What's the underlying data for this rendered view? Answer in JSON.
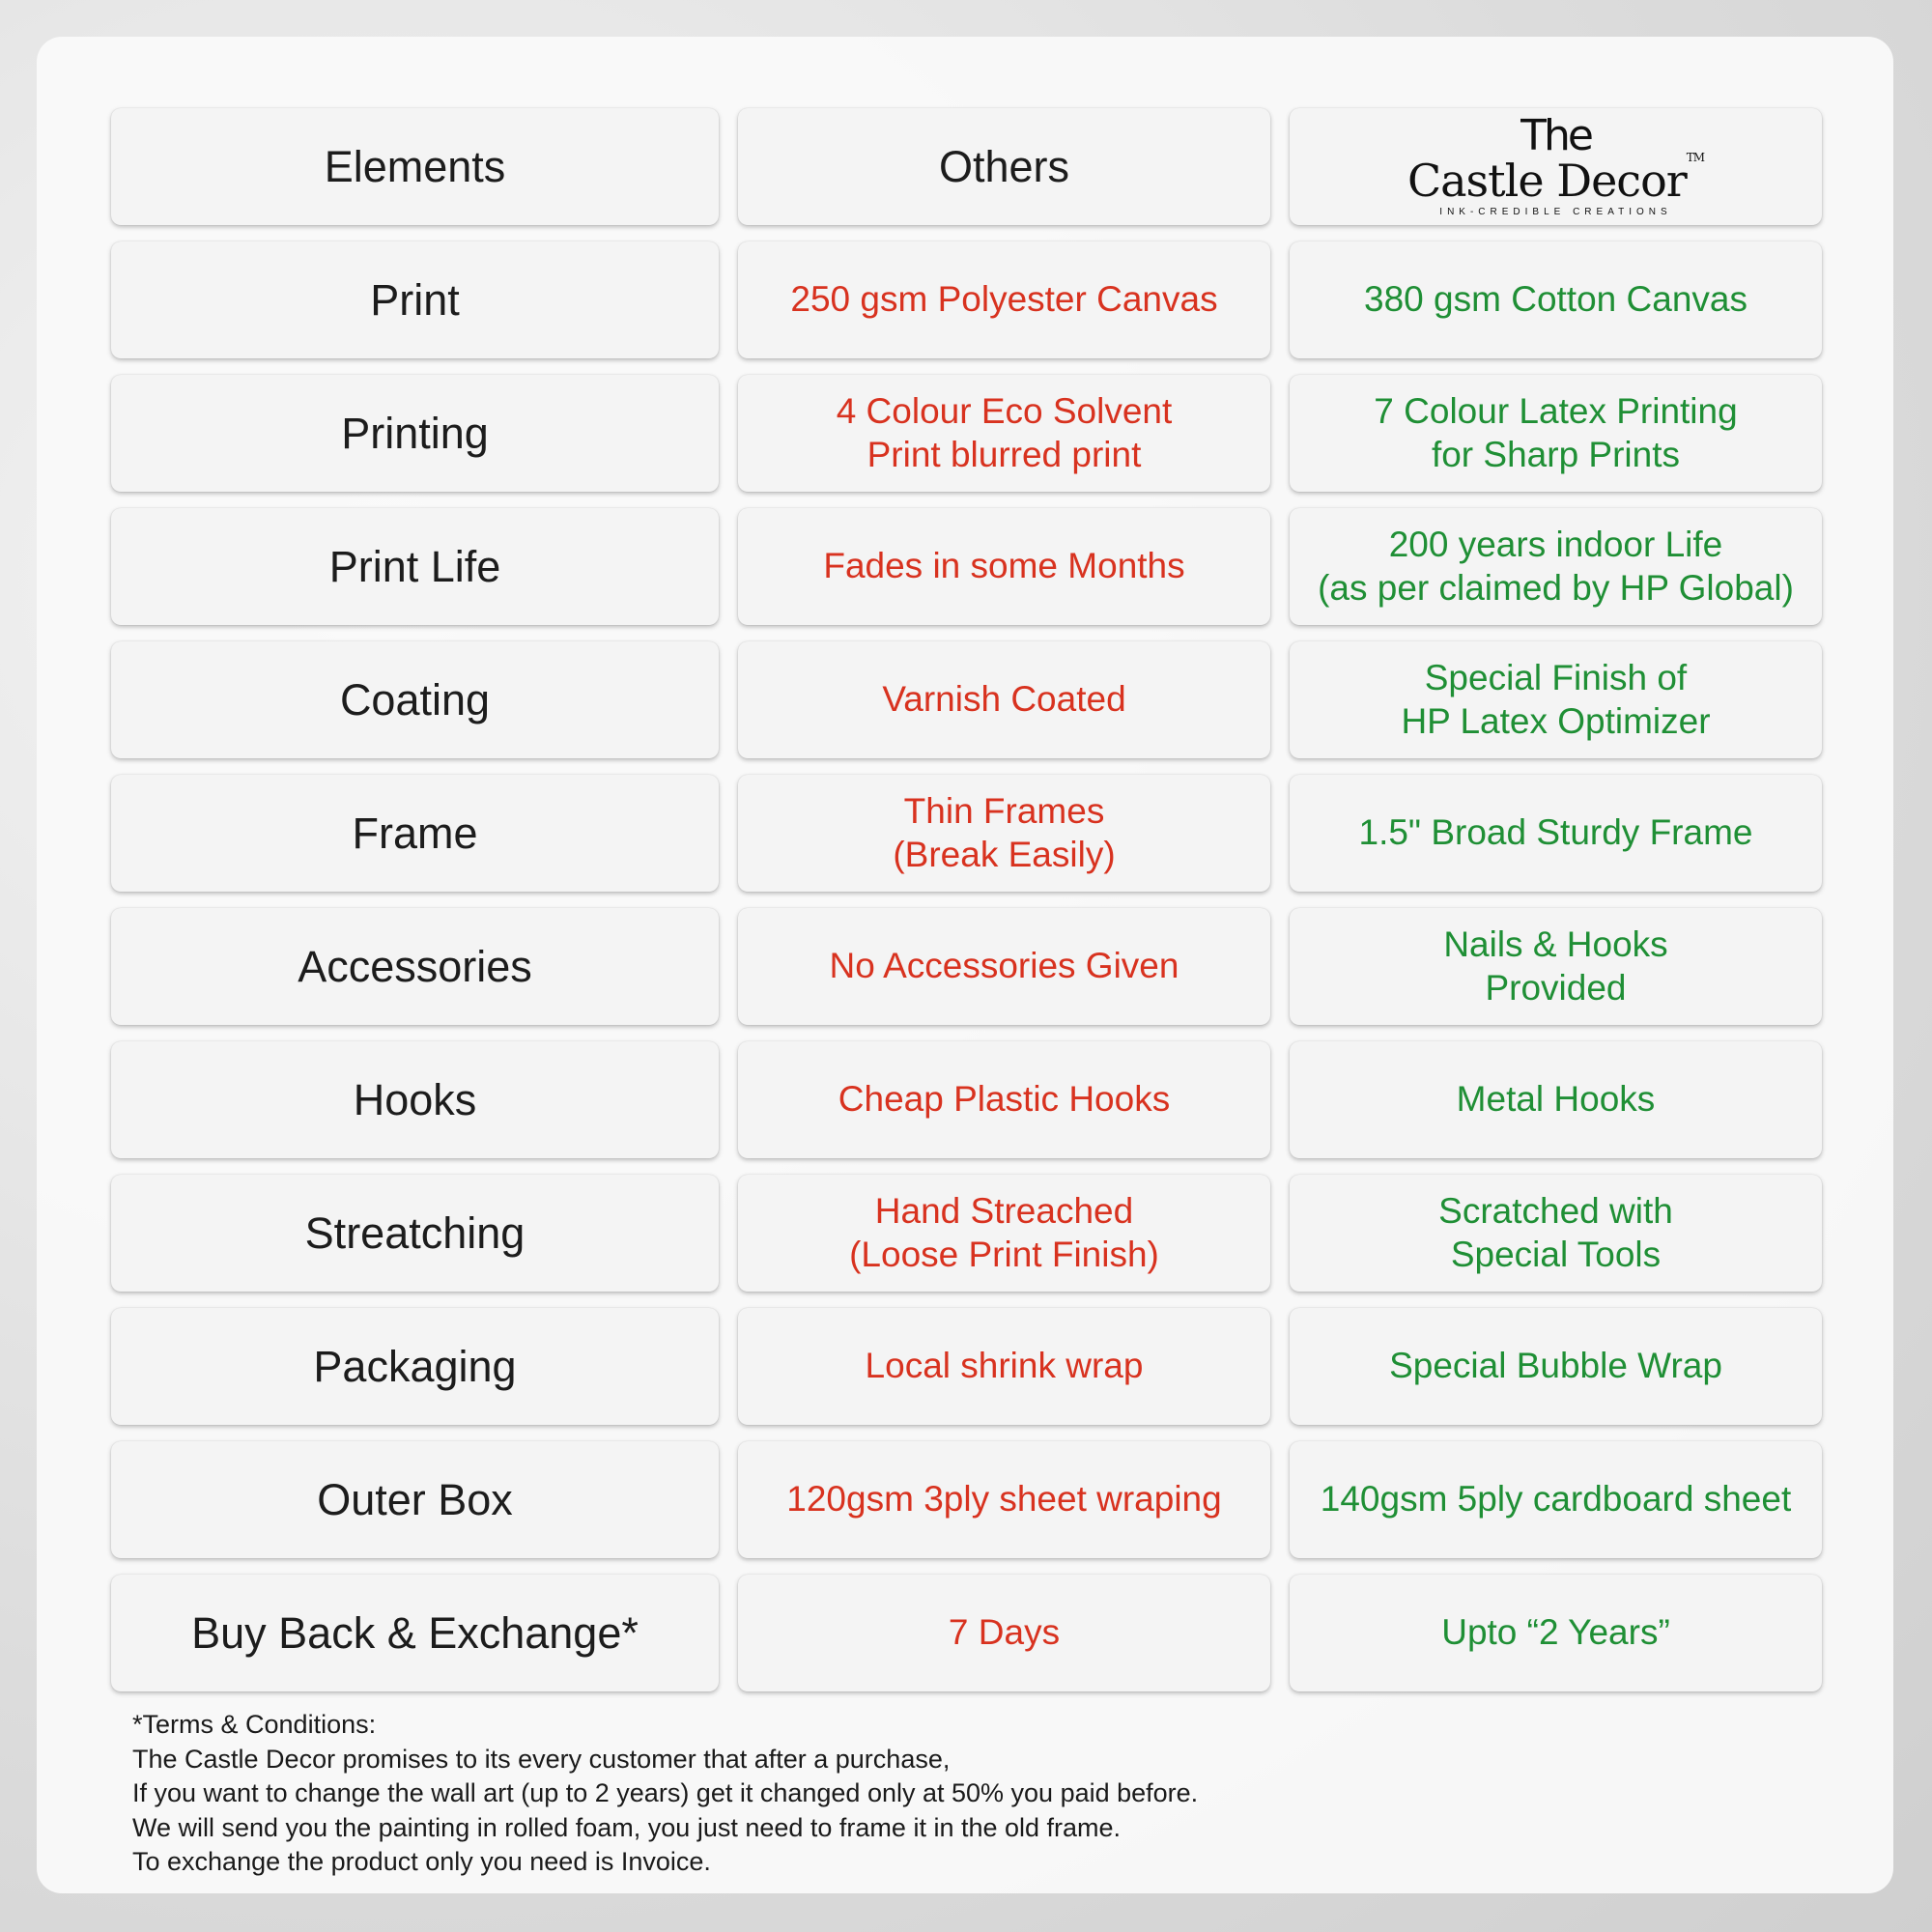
{
  "header": {
    "elements_label": "Elements",
    "others_label": "Others",
    "brand_logo": {
      "line1": "The",
      "line2": "Castle Decor",
      "mark": "TM",
      "tagline": "INK-CREDIBLE CREATIONS"
    }
  },
  "colors": {
    "others": "#d8321f",
    "castle_decor": "#1f8f35"
  },
  "rows": [
    {
      "element": "Print",
      "others": "250 gsm Polyester Canvas",
      "castle_decor": "380 gsm Cotton Canvas"
    },
    {
      "element": "Printing",
      "others": "4 Colour Eco Solvent\nPrint blurred print",
      "castle_decor": "7 Colour Latex Printing\nfor Sharp Prints"
    },
    {
      "element": "Print Life",
      "others": "Fades in some Months",
      "castle_decor": "200 years indoor Life\n(as per claimed by HP Global)"
    },
    {
      "element": "Coating",
      "others": "Varnish Coated",
      "castle_decor": "Special Finish of\nHP Latex Optimizer"
    },
    {
      "element": "Frame",
      "others": "Thin Frames\n(Break Easily)",
      "castle_decor": "1.5\" Broad Sturdy Frame"
    },
    {
      "element": "Accessories",
      "others": "No Accessories Given",
      "castle_decor": "Nails & Hooks\nProvided"
    },
    {
      "element": "Hooks",
      "others": "Cheap Plastic Hooks",
      "castle_decor": "Metal Hooks"
    },
    {
      "element": "Streatching",
      "others": "Hand Streached\n(Loose Print Finish)",
      "castle_decor": "Scratched with\nSpecial Tools"
    },
    {
      "element": "Packaging",
      "others": "Local shrink wrap",
      "castle_decor": "Special Bubble Wrap"
    },
    {
      "element": "Outer Box",
      "others": "120gsm 3ply sheet wraping",
      "castle_decor": "140gsm 5ply cardboard sheet"
    },
    {
      "element": "Buy Back & Exchange*",
      "others": "7 Days",
      "castle_decor": "Upto “2 Years”"
    }
  ],
  "terms": {
    "title": "*Terms & Conditions:",
    "lines": [
      "The Castle Decor promises to its every customer that after a purchase,",
      "If you want to change the wall art (up to 2 years) get it changed only at 50% you paid before.",
      "We will send you the painting in rolled foam, you just need to frame it in the old frame.",
      "To exchange the product only you need is Invoice."
    ]
  }
}
